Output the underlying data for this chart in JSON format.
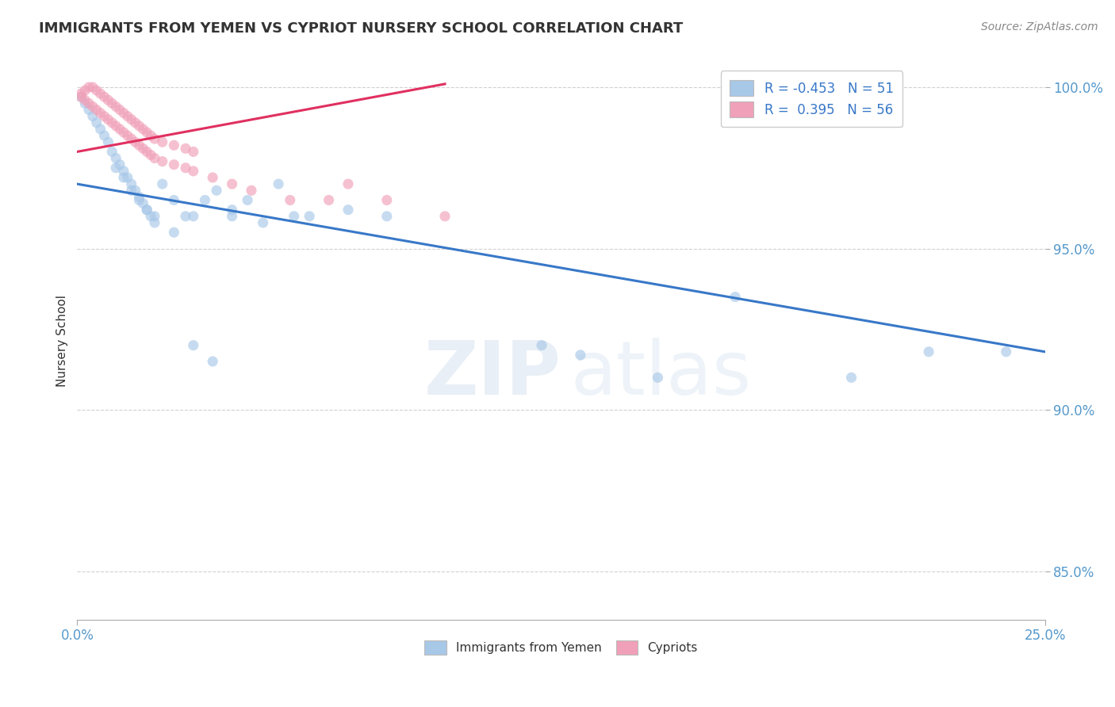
{
  "title": "IMMIGRANTS FROM YEMEN VS CYPRIOT NURSERY SCHOOL CORRELATION CHART",
  "source": "Source: ZipAtlas.com",
  "ylabel": "Nursery School",
  "xlim": [
    0.0,
    0.25
  ],
  "ylim": [
    0.835,
    1.008
  ],
  "xtick_positions": [
    0.0,
    0.25
  ],
  "xticklabels": [
    "0.0%",
    "25.0%"
  ],
  "ytick_positions": [
    0.85,
    0.9,
    0.95,
    1.0
  ],
  "ytick_labels": [
    "85.0%",
    "90.0%",
    "95.0%",
    "100.0%"
  ],
  "blue_legend_label": "R = -0.453   N = 51",
  "pink_legend_label": "R =  0.395   N = 56",
  "blue_color": "#a8c8e8",
  "pink_color": "#f0a0b8",
  "blue_line_color": "#3878c8",
  "pink_line_color": "#e03060",
  "scatter_alpha": 0.65,
  "scatter_size": 90,
  "blue_x": [
    0.001,
    0.002,
    0.003,
    0.004,
    0.005,
    0.006,
    0.007,
    0.008,
    0.009,
    0.01,
    0.011,
    0.012,
    0.013,
    0.014,
    0.015,
    0.016,
    0.017,
    0.018,
    0.019,
    0.02,
    0.022,
    0.025,
    0.028,
    0.03,
    0.033,
    0.036,
    0.04,
    0.044,
    0.048,
    0.052,
    0.056,
    0.06,
    0.07,
    0.08,
    0.01,
    0.012,
    0.014,
    0.016,
    0.018,
    0.02,
    0.025,
    0.03,
    0.035,
    0.04,
    0.12,
    0.15,
    0.17,
    0.2,
    0.22,
    0.24,
    0.13
  ],
  "blue_y": [
    0.997,
    0.995,
    0.993,
    0.991,
    0.989,
    0.987,
    0.985,
    0.983,
    0.98,
    0.978,
    0.976,
    0.974,
    0.972,
    0.97,
    0.968,
    0.966,
    0.964,
    0.962,
    0.96,
    0.958,
    0.97,
    0.965,
    0.96,
    0.96,
    0.965,
    0.968,
    0.962,
    0.965,
    0.958,
    0.97,
    0.96,
    0.96,
    0.962,
    0.96,
    0.975,
    0.972,
    0.968,
    0.965,
    0.962,
    0.96,
    0.955,
    0.92,
    0.915,
    0.96,
    0.92,
    0.91,
    0.935,
    0.91,
    0.918,
    0.918,
    0.917
  ],
  "pink_x": [
    0.001,
    0.002,
    0.003,
    0.004,
    0.005,
    0.006,
    0.007,
    0.008,
    0.009,
    0.01,
    0.011,
    0.012,
    0.013,
    0.014,
    0.015,
    0.016,
    0.017,
    0.018,
    0.019,
    0.02,
    0.022,
    0.025,
    0.028,
    0.03,
    0.001,
    0.002,
    0.003,
    0.004,
    0.005,
    0.006,
    0.007,
    0.008,
    0.009,
    0.01,
    0.011,
    0.012,
    0.013,
    0.014,
    0.015,
    0.016,
    0.017,
    0.018,
    0.019,
    0.02,
    0.022,
    0.025,
    0.028,
    0.03,
    0.035,
    0.04,
    0.045,
    0.055,
    0.065,
    0.07,
    0.08,
    0.095
  ],
  "pink_y": [
    0.998,
    0.999,
    1.0,
    1.0,
    0.999,
    0.998,
    0.997,
    0.996,
    0.995,
    0.994,
    0.993,
    0.992,
    0.991,
    0.99,
    0.989,
    0.988,
    0.987,
    0.986,
    0.985,
    0.984,
    0.983,
    0.982,
    0.981,
    0.98,
    0.997,
    0.996,
    0.995,
    0.994,
    0.993,
    0.992,
    0.991,
    0.99,
    0.989,
    0.988,
    0.987,
    0.986,
    0.985,
    0.984,
    0.983,
    0.982,
    0.981,
    0.98,
    0.979,
    0.978,
    0.977,
    0.976,
    0.975,
    0.974,
    0.972,
    0.97,
    0.968,
    0.965,
    0.965,
    0.97,
    0.965,
    0.96
  ],
  "blue_trendline_x": [
    0.0,
    0.25
  ],
  "blue_trendline_y": [
    0.97,
    0.918
  ],
  "pink_trendline_x": [
    0.0,
    0.095
  ],
  "pink_trendline_y": [
    0.98,
    1.001
  ],
  "watermark_zip": "ZIP",
  "watermark_atlas": "atlas",
  "grid_color": "#cccccc",
  "background_color": "#ffffff",
  "tick_color": "#5599cc",
  "text_color": "#333333",
  "source_color": "#888888",
  "legend_text_color": "#3878c8"
}
